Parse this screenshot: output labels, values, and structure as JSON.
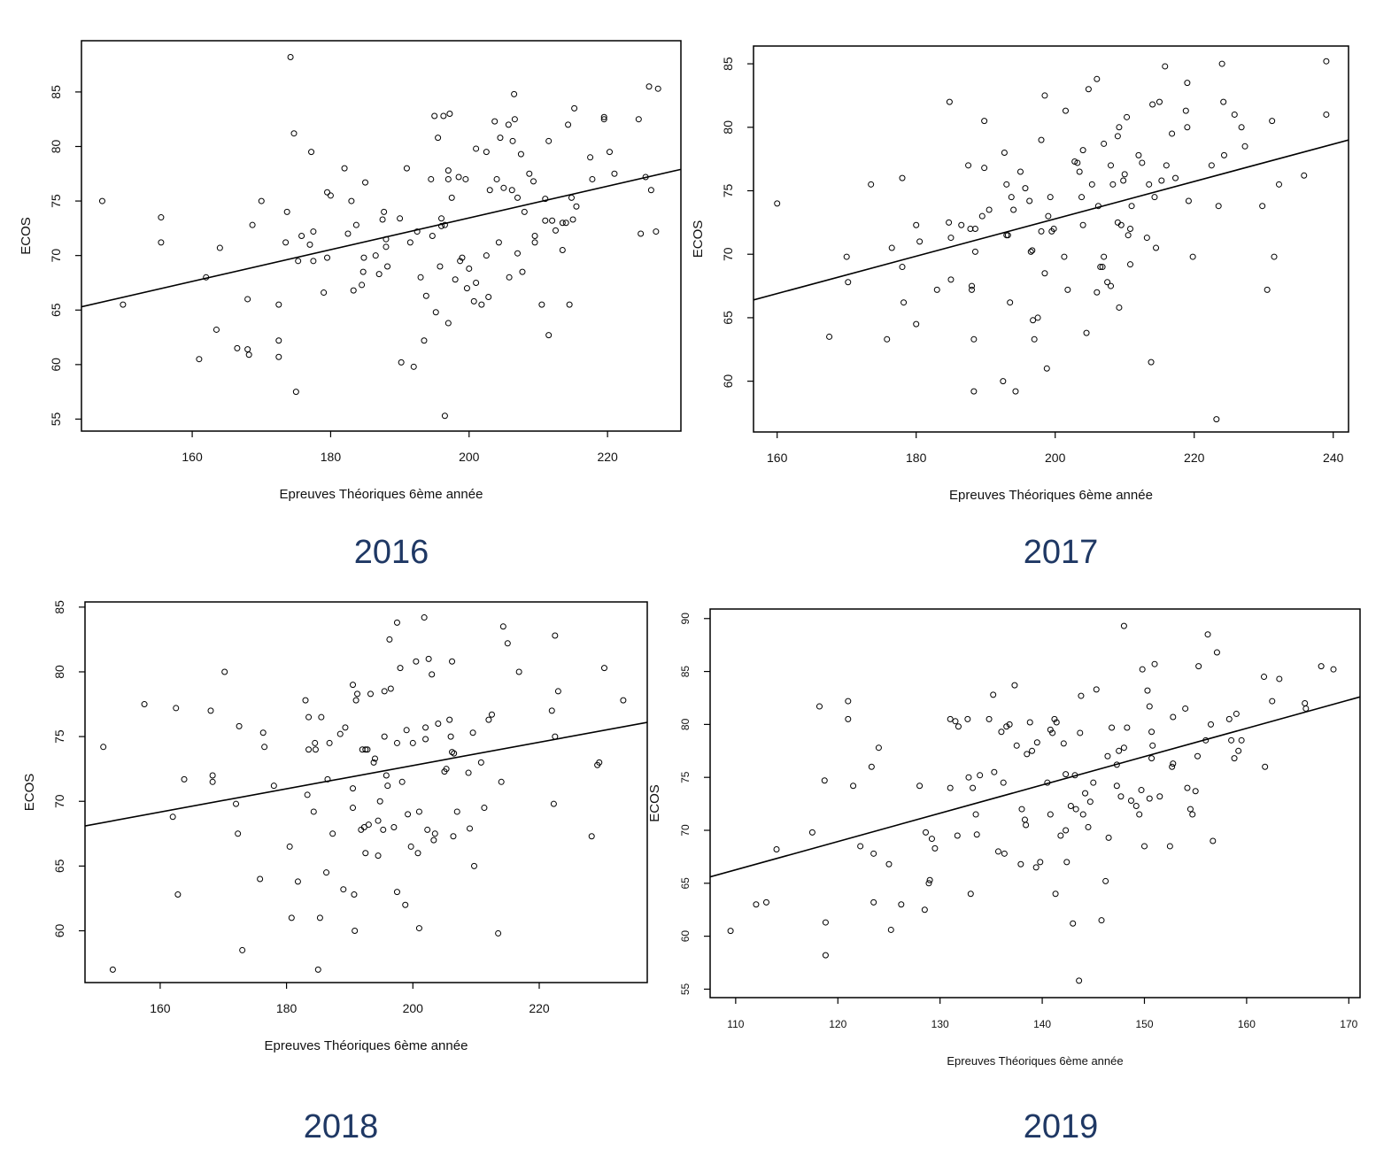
{
  "chart_data": [
    {
      "type": "scatter",
      "caption": "2016",
      "xlabel": "Epreuves Théoriques 6ème année",
      "ylabel": "ECOS",
      "color": "#000000",
      "xlim": [
        144,
        230.6
      ],
      "ylim": [
        53.9,
        89.7
      ],
      "xticks": [
        160,
        180,
        200,
        220
      ],
      "yticks": [
        55,
        60,
        65,
        70,
        75,
        80,
        85
      ],
      "fit_line": {
        "x": [
          144,
          230.6
        ],
        "y": [
          65.3,
          77.9
        ]
      },
      "x": [
        147,
        150,
        155.5,
        155.5,
        161,
        162,
        163.5,
        164,
        166.5,
        168,
        168,
        168.2,
        168.7,
        170,
        172.5,
        172.5,
        172.5,
        173.5,
        173.7,
        174.2,
        174.7,
        175,
        175.3,
        175.8,
        177,
        177.2,
        177.5,
        177.5,
        179,
        179.5,
        179.5,
        180,
        182,
        182.5,
        183,
        183.3,
        183.7,
        184.5,
        184.7,
        184.8,
        185,
        186.5,
        187,
        187.5,
        187.7,
        188,
        188,
        188.2,
        190,
        190.2,
        191,
        191.5,
        192,
        192.5,
        193,
        193.5,
        193.8,
        194.5,
        194.7,
        195,
        195.2,
        195.5,
        195.8,
        196,
        196,
        196.3,
        196.5,
        196.5,
        197,
        197,
        197,
        197.2,
        197.5,
        198,
        198.5,
        198.7,
        199,
        199.5,
        199.7,
        200,
        200.7,
        201,
        201,
        201.8,
        202.5,
        202.5,
        202.8,
        203,
        203.7,
        204,
        204.3,
        204.5,
        205,
        205.7,
        205.8,
        206.2,
        206.3,
        206.5,
        206.6,
        207,
        207,
        207.5,
        207.7,
        208,
        208.7,
        209.3,
        209.5,
        209.5,
        210.5,
        211,
        211,
        211.5,
        211.5,
        212,
        212.5,
        213.5,
        213.5,
        214,
        214.3,
        214.5,
        214.8,
        215,
        215.2,
        215.5,
        217.5,
        217.8,
        219.5,
        219.5,
        220.3,
        221,
        224.5,
        224.8,
        225.5,
        226,
        226.3,
        227,
        227.3
      ],
      "values": [
        75,
        65.5,
        71.2,
        73.5,
        60.5,
        68,
        63.2,
        70.7,
        61.5,
        66,
        61.4,
        60.9,
        72.8,
        75,
        62.2,
        65.5,
        60.7,
        71.2,
        74,
        88.2,
        81.2,
        57.5,
        69.5,
        71.8,
        71,
        79.5,
        72.2,
        69.5,
        66.6,
        69.8,
        75.8,
        75.5,
        78,
        72,
        75,
        66.8,
        72.8,
        67.3,
        68.5,
        69.8,
        76.7,
        70,
        68.3,
        73.3,
        74,
        70.8,
        71.5,
        69,
        73.4,
        60.2,
        78,
        71.2,
        59.8,
        72.2,
        68,
        62.2,
        66.3,
        77,
        71.8,
        82.8,
        64.8,
        80.8,
        69,
        73.4,
        72.7,
        82.8,
        72.8,
        55.3,
        77.8,
        77,
        63.8,
        83,
        75.3,
        67.8,
        77.2,
        69.5,
        69.8,
        77,
        67,
        68.8,
        65.8,
        79.8,
        67.5,
        65.5,
        70,
        79.5,
        66.2,
        76,
        82.3,
        77,
        71.2,
        80.8,
        76.2,
        82,
        68,
        76,
        80.5,
        84.8,
        82.5,
        75.3,
        70.2,
        79.3,
        68.5,
        74,
        77.5,
        76.8,
        71.8,
        71.2,
        65.5,
        75.2,
        73.2,
        80.5,
        62.7,
        73.2,
        72.3,
        73,
        70.5,
        73,
        82,
        65.5,
        75.3,
        73.3,
        83.5,
        74.5,
        79,
        77,
        82.7,
        82.5,
        79.5,
        77.5,
        82.5,
        72,
        77.2,
        85.5,
        76,
        72.2,
        85.3
      ]
    },
    {
      "type": "scatter",
      "caption": "2017",
      "xlabel": "Epreuves Théoriques 6ème année",
      "ylabel": "ECOS",
      "color": "#000000",
      "xlim": [
        156.6,
        242.2
      ],
      "ylim": [
        56.0,
        86.4
      ],
      "xticks": [
        160,
        180,
        200,
        220,
        240
      ],
      "yticks": [
        60,
        65,
        70,
        75,
        80,
        85
      ],
      "fit_line": {
        "x": [
          156.6,
          242.2
        ],
        "y": [
          66.4,
          79.0
        ]
      },
      "x": [
        160,
        167.5,
        170,
        170.2,
        173.5,
        175.8,
        176.5,
        178,
        178,
        178.2,
        180,
        180,
        180.5,
        183,
        184.7,
        184.8,
        185,
        185,
        186.5,
        187.5,
        187.8,
        188,
        188,
        188.3,
        188.3,
        188.5,
        188.5,
        189.5,
        189.8,
        189.8,
        190.5,
        192.5,
        192.7,
        193,
        193,
        193.2,
        193.5,
        193.7,
        194,
        194.3,
        195,
        195.7,
        196.3,
        196.5,
        196.7,
        196.8,
        197,
        197.5,
        198,
        198,
        198.5,
        198.5,
        198.8,
        199,
        199.3,
        199.5,
        199.8,
        201.3,
        201.5,
        201.8,
        202.8,
        203.2,
        203.5,
        203.8,
        204,
        204,
        204.5,
        204.8,
        205.3,
        206,
        206.2,
        206,
        206.5,
        206.8,
        207,
        207,
        207.5,
        208,
        208,
        208.3,
        209,
        209,
        209.2,
        209.2,
        209.5,
        209.8,
        210,
        210.3,
        210.5,
        210.8,
        210.8,
        211,
        212,
        212.5,
        213.2,
        213.5,
        213.8,
        214,
        214.3,
        214.5,
        215,
        215.3,
        215.8,
        216,
        216.8,
        217.3,
        218.8,
        219,
        219,
        219.2,
        219.8,
        222.5,
        223.2,
        223.5,
        224,
        224.2,
        224.3,
        225.8,
        226.8,
        227.3,
        229.8,
        230.5,
        231.2,
        231.5,
        232.2,
        235.8,
        239,
        239
      ],
      "values": [
        74,
        63.5,
        69.8,
        67.8,
        75.5,
        63.3,
        70.5,
        76,
        69,
        66.2,
        64.5,
        72.3,
        71,
        67.2,
        72.5,
        82,
        68,
        71.3,
        72.3,
        77,
        72,
        67.2,
        67.5,
        63.3,
        59.2,
        70.2,
        72,
        73,
        80.5,
        76.8,
        73.5,
        60,
        78,
        71.5,
        75.5,
        71.5,
        66.2,
        74.5,
        73.5,
        59.2,
        76.5,
        75.2,
        74.2,
        70.2,
        70.3,
        64.8,
        63.3,
        65,
        79,
        71.8,
        82.5,
        68.5,
        61,
        73,
        74.5,
        71.8,
        72,
        69.8,
        81.3,
        67.2,
        77.3,
        77.2,
        76.5,
        74.5,
        78.2,
        72.3,
        63.8,
        83,
        75.5,
        67,
        73.8,
        83.8,
        69,
        69,
        69.8,
        78.7,
        67.8,
        67.5,
        77,
        75.5,
        72.5,
        79.3,
        65.8,
        80,
        72.3,
        75.8,
        76.3,
        80.8,
        71.5,
        72,
        69.2,
        73.8,
        77.8,
        77.2,
        71.3,
        75.5,
        61.5,
        81.8,
        74.5,
        70.5,
        82,
        75.8,
        84.8,
        77,
        79.5,
        76,
        81.3,
        83.5,
        80,
        74.2,
        69.8,
        77,
        57,
        73.8,
        85,
        82,
        77.8,
        81,
        80,
        78.5,
        73.8,
        67.2,
        80.5,
        69.8,
        75.5,
        76.2,
        85.2,
        81
      ]
    },
    {
      "type": "scatter",
      "caption": "2018",
      "xlabel": "Epreuves Théoriques 6ème année",
      "ylabel": "ECOS",
      "color": "#000000",
      "xlim": [
        148.1,
        237.1
      ],
      "ylim": [
        56.0,
        85.4
      ],
      "xticks": [
        160,
        180,
        200,
        220
      ],
      "yticks": [
        60,
        65,
        70,
        75,
        80,
        85
      ],
      "fit_line": {
        "x": [
          148.1,
          237.1
        ],
        "y": [
          68.1,
          76.1
        ]
      },
      "x": [
        151,
        152.5,
        157.5,
        162,
        162.5,
        162.8,
        163.8,
        168,
        168.3,
        168.3,
        170.2,
        172,
        172.3,
        172.5,
        173,
        175.8,
        176.3,
        176.5,
        178,
        180.5,
        180.8,
        181.8,
        183,
        183.3,
        183.5,
        183.5,
        184.3,
        184.5,
        184.6,
        185,
        185.3,
        185.5,
        186.3,
        186.5,
        186.8,
        187.3,
        188.5,
        189,
        189.3,
        190.5,
        190.5,
        190.5,
        190.7,
        190.8,
        191,
        191.2,
        191.8,
        192,
        192.3,
        192.5,
        192.5,
        192.8,
        193,
        193.3,
        193.8,
        194,
        194.5,
        194.5,
        194.8,
        195.3,
        195.5,
        195.5,
        195.8,
        196,
        196.3,
        196.5,
        197,
        197.5,
        197.5,
        197.5,
        198,
        198.3,
        198.8,
        199,
        199.2,
        199.7,
        200,
        200.5,
        200.8,
        201,
        201,
        201.8,
        202,
        202,
        202.3,
        202.5,
        203,
        203.3,
        203.5,
        204,
        205,
        205.3,
        205.8,
        206,
        206.2,
        206.2,
        206.4,
        206.5,
        207,
        208.8,
        209,
        209.5,
        209.7,
        210.8,
        211.3,
        212,
        212.5,
        213.5,
        214,
        214.3,
        215,
        216.8,
        222,
        222.3,
        222.5,
        222.5,
        223,
        228.3,
        229.2,
        229.5,
        230.3,
        233.3
      ],
      "values": [
        74.2,
        57,
        77.5,
        68.8,
        77.2,
        62.8,
        71.7,
        77,
        72,
        71.5,
        80,
        69.8,
        67.5,
        75.8,
        58.5,
        64,
        75.3,
        74.2,
        71.2,
        66.5,
        61,
        63.8,
        77.8,
        70.5,
        74,
        76.5,
        69.2,
        74.5,
        74,
        57,
        61,
        76.5,
        64.5,
        71.7,
        74.5,
        67.5,
        75.2,
        63.2,
        75.7,
        71,
        69.5,
        79,
        62.8,
        60,
        77.8,
        78.3,
        67.8,
        74,
        68,
        74,
        66,
        74,
        68.2,
        78.3,
        73,
        73.3,
        68.5,
        65.8,
        70,
        67.8,
        75,
        78.5,
        72,
        71.2,
        82.5,
        78.7,
        68,
        83.8,
        63,
        74.5,
        80.3,
        71.5,
        62,
        75.5,
        69,
        66.5,
        74.5,
        80.8,
        66,
        69.2,
        60.2,
        84.2,
        74.8,
        75.7,
        67.8,
        81,
        79.8,
        67,
        67.5,
        76,
        72.3,
        72.5,
        76.3,
        75,
        80.8,
        73.8,
        67.3,
        73.7,
        69.2,
        72.2,
        67.9,
        75.3,
        65,
        73,
        69.5,
        76.3,
        76.7,
        59.8,
        71.5,
        83.5,
        82.2,
        80,
        77,
        69.8,
        75,
        82.8,
        78.5,
        67.3,
        72.8,
        73,
        80.3,
        77.8
      ]
    },
    {
      "type": "scatter",
      "caption": "2019",
      "xlabel": "Epreuves Théoriques 6ème année",
      "ylabel": "ECOS",
      "color": "#000000",
      "xlim": [
        107.5,
        171.1
      ],
      "ylim": [
        54.2,
        90.9
      ],
      "xticks": [
        110,
        120,
        130,
        140,
        150,
        160,
        170
      ],
      "yticks": [
        55,
        60,
        65,
        70,
        75,
        80,
        85,
        90
      ],
      "fit_line": {
        "x": [
          107.5,
          171.1
        ],
        "y": [
          65.6,
          82.6
        ]
      },
      "x": [
        109.5,
        112,
        113,
        114,
        117.5,
        118.2,
        118.7,
        118.8,
        118.8,
        121,
        121,
        121.5,
        122.2,
        123.3,
        123.5,
        123.5,
        124,
        125,
        125.2,
        126.2,
        128,
        128.5,
        128.6,
        128.9,
        129,
        129.2,
        129.5,
        131,
        131,
        131.5,
        131.7,
        131.8,
        132.7,
        132.8,
        133,
        133.2,
        133.5,
        133.6,
        133.9,
        134.8,
        135.2,
        135.3,
        135.7,
        136,
        136.2,
        136.3,
        136.5,
        136.8,
        137.3,
        137.5,
        137.9,
        138,
        138.3,
        138.4,
        138.5,
        138.8,
        139,
        139.4,
        139.5,
        139.8,
        140.5,
        140.8,
        140.8,
        141,
        141.2,
        141.3,
        141.4,
        141.8,
        142.1,
        142.3,
        142.3,
        142.4,
        142.8,
        143,
        143.2,
        143.3,
        143.6,
        143.7,
        143.8,
        144,
        144.2,
        144.5,
        144.7,
        145,
        145.3,
        145.8,
        146.2,
        146.4,
        146.5,
        146.8,
        147.3,
        147.3,
        147.5,
        147.7,
        148,
        148,
        148.3,
        148.7,
        149.2,
        149.5,
        149.7,
        149.8,
        150,
        150.3,
        150.5,
        150.5,
        150.7,
        150.7,
        150.8,
        151,
        151.5,
        152.5,
        152.7,
        152.8,
        152.8,
        154,
        154.2,
        154.5,
        154.7,
        155,
        155.2,
        155.3,
        156,
        156.2,
        156.5,
        156.7,
        157.1,
        158.3,
        158.5,
        158.8,
        159,
        159.2,
        159.5,
        161.7,
        161.8,
        162.5,
        163.2,
        165.7,
        165.8,
        167.3,
        168.5
      ],
      "values": [
        60.5,
        63,
        63.2,
        68.2,
        69.8,
        81.7,
        74.7,
        61.3,
        58.2,
        82.2,
        80.5,
        74.2,
        68.5,
        76,
        67.8,
        63.2,
        77.8,
        66.8,
        60.6,
        63,
        74.2,
        62.5,
        69.8,
        65,
        65.3,
        69.2,
        68.3,
        80.5,
        74,
        80.3,
        69.5,
        79.8,
        80.5,
        75,
        64,
        74,
        71.5,
        69.6,
        75.2,
        80.5,
        82.8,
        75.5,
        68,
        79.3,
        74.5,
        67.8,
        79.8,
        80,
        83.7,
        78,
        66.8,
        72,
        71,
        70.5,
        77.2,
        80.2,
        77.5,
        66.5,
        78.3,
        67,
        74.5,
        71.5,
        79.5,
        79.2,
        80.5,
        64,
        80.2,
        69.5,
        78.2,
        70,
        75.3,
        67,
        72.3,
        61.2,
        75.2,
        72,
        55.8,
        79.2,
        82.7,
        71.5,
        73.5,
        70.3,
        72.7,
        74.5,
        83.3,
        61.5,
        65.2,
        77,
        69.3,
        79.7,
        76.2,
        74.2,
        77.5,
        73.2,
        77.8,
        89.3,
        79.7,
        72.8,
        72.3,
        71.5,
        73.8,
        85.2,
        68.5,
        83.2,
        81.7,
        73,
        79.3,
        76.8,
        78,
        85.7,
        73.2,
        68.5,
        76,
        76.3,
        80.7,
        81.5,
        74,
        72,
        71.5,
        73.7,
        77,
        85.5,
        78.5,
        88.5,
        80,
        69,
        86.8,
        80.5,
        78.5,
        76.8,
        81,
        77.5,
        78.5,
        84.5,
        76,
        82.2,
        84.3,
        82,
        81.5,
        85.5,
        85.2
      ]
    }
  ]
}
